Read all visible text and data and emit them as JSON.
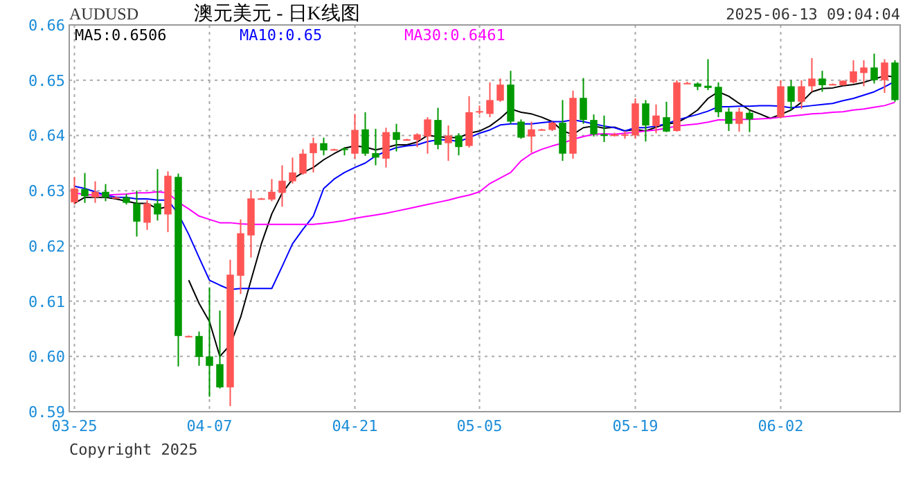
{
  "chart_data": {
    "type": "candlestick",
    "title": "澳元美元 - 日K线图",
    "annotations": [
      "AUDUSD",
      "2025-06-13 09:04:04",
      "Copyright 2025"
    ],
    "categories": [
      "03-25",
      null,
      null,
      null,
      null,
      null,
      null,
      null,
      null,
      null,
      null,
      null,
      null,
      "04-07",
      null,
      null,
      null,
      null,
      null,
      null,
      null,
      null,
      null,
      null,
      null,
      null,
      null,
      "04-21",
      null,
      null,
      null,
      null,
      null,
      null,
      null,
      null,
      null,
      null,
      null,
      "05-05",
      null,
      null,
      null,
      null,
      null,
      null,
      null,
      null,
      null,
      null,
      null,
      null,
      null,
      null,
      "05-19",
      null,
      null,
      null,
      null,
      null,
      null,
      null,
      null,
      null,
      null,
      null,
      null,
      null,
      "06-02",
      null,
      null,
      null,
      null,
      null,
      null,
      null,
      null,
      null,
      null,
      null
    ],
    "ohlc": [
      [
        0.6279,
        0.6325,
        0.6275,
        0.6304
      ],
      [
        0.6303,
        0.6332,
        0.6278,
        0.629
      ],
      [
        0.6288,
        0.6317,
        0.6278,
        0.6298
      ],
      [
        0.6298,
        0.6312,
        0.6281,
        0.6288
      ],
      [
        0.6288,
        0.629,
        0.6286,
        0.6288
      ],
      [
        0.6288,
        0.6294,
        0.6275,
        0.6278
      ],
      [
        0.6277,
        0.63,
        0.6217,
        0.6244
      ],
      [
        0.6242,
        0.6283,
        0.6229,
        0.6277
      ],
      [
        0.6277,
        0.6339,
        0.6246,
        0.6257
      ],
      [
        0.6257,
        0.6335,
        0.6225,
        0.6327
      ],
      [
        0.6325,
        0.6331,
        0.5982,
        0.6037
      ],
      [
        0.6037,
        0.6038,
        0.6036,
        0.6037
      ],
      [
        0.6037,
        0.6045,
        0.5983,
        0.5999
      ],
      [
        0.6,
        0.6125,
        0.5927,
        0.5983
      ],
      [
        0.5986,
        0.6083,
        0.5942,
        0.5944
      ],
      [
        0.5944,
        0.6175,
        0.591,
        0.6148
      ],
      [
        0.6146,
        0.6248,
        0.6113,
        0.6223
      ],
      [
        0.6219,
        0.63,
        0.6179,
        0.6286
      ],
      [
        0.6286,
        0.6287,
        0.6285,
        0.6286
      ],
      [
        0.6284,
        0.6321,
        0.6281,
        0.6298
      ],
      [
        0.6296,
        0.6346,
        0.6271,
        0.6318
      ],
      [
        0.6317,
        0.636,
        0.6313,
        0.6333
      ],
      [
        0.6331,
        0.6375,
        0.6329,
        0.6367
      ],
      [
        0.6368,
        0.6396,
        0.6333,
        0.6386
      ],
      [
        0.6386,
        0.6396,
        0.6364,
        0.6373
      ],
      [
        0.6375,
        0.6376,
        0.6374,
        0.6375
      ],
      [
        0.6376,
        0.6379,
        0.6364,
        0.6374
      ],
      [
        0.6367,
        0.6439,
        0.6358,
        0.641
      ],
      [
        0.6411,
        0.6442,
        0.6363,
        0.6367
      ],
      [
        0.6368,
        0.6412,
        0.6346,
        0.636
      ],
      [
        0.6358,
        0.6414,
        0.6342,
        0.6406
      ],
      [
        0.6406,
        0.6421,
        0.6371,
        0.6392
      ],
      [
        0.6393,
        0.6394,
        0.6392,
        0.6393
      ],
      [
        0.6392,
        0.6404,
        0.6379,
        0.6402
      ],
      [
        0.6398,
        0.6433,
        0.6367,
        0.6429
      ],
      [
        0.6428,
        0.645,
        0.6375,
        0.6383
      ],
      [
        0.6386,
        0.6418,
        0.6354,
        0.64
      ],
      [
        0.64,
        0.6404,
        0.6364,
        0.6379
      ],
      [
        0.6381,
        0.6471,
        0.6378,
        0.6442
      ],
      [
        0.6443,
        0.6454,
        0.6438,
        0.6444
      ],
      [
        0.6439,
        0.6496,
        0.6433,
        0.6464
      ],
      [
        0.6463,
        0.6503,
        0.6461,
        0.6492
      ],
      [
        0.6492,
        0.6517,
        0.6421,
        0.6425
      ],
      [
        0.6425,
        0.6429,
        0.6394,
        0.6396
      ],
      [
        0.6398,
        0.6425,
        0.6369,
        0.6411
      ],
      [
        0.6411,
        0.6412,
        0.641,
        0.6411
      ],
      [
        0.641,
        0.6425,
        0.6408,
        0.6423
      ],
      [
        0.6423,
        0.6464,
        0.6354,
        0.6367
      ],
      [
        0.6367,
        0.6481,
        0.6358,
        0.6468
      ],
      [
        0.6468,
        0.6504,
        0.6421,
        0.6428
      ],
      [
        0.6428,
        0.6438,
        0.6398,
        0.6402
      ],
      [
        0.6402,
        0.6436,
        0.6388,
        0.6399
      ],
      [
        0.6399,
        0.6405,
        0.6398,
        0.6402
      ],
      [
        0.6401,
        0.6408,
        0.6394,
        0.6402
      ],
      [
        0.64,
        0.6467,
        0.6394,
        0.6458
      ],
      [
        0.6458,
        0.6464,
        0.6389,
        0.6418
      ],
      [
        0.6417,
        0.6456,
        0.6404,
        0.6436
      ],
      [
        0.6433,
        0.6461,
        0.6406,
        0.6407
      ],
      [
        0.6408,
        0.65,
        0.6407,
        0.6496
      ],
      [
        0.6495,
        0.6497,
        0.6494,
        0.6495
      ],
      [
        0.6494,
        0.6496,
        0.6482,
        0.6488
      ],
      [
        0.649,
        0.6538,
        0.6482,
        0.6486
      ],
      [
        0.6488,
        0.6496,
        0.6433,
        0.6442
      ],
      [
        0.6443,
        0.645,
        0.6408,
        0.6421
      ],
      [
        0.6421,
        0.645,
        0.6407,
        0.6443
      ],
      [
        0.6441,
        0.6446,
        0.6406,
        0.6429
      ],
      null,
      null,
      [
        0.6433,
        0.65,
        0.6431,
        0.6489
      ],
      [
        0.6489,
        0.65,
        0.6446,
        0.6461
      ],
      [
        0.6461,
        0.65,
        0.6448,
        0.6489
      ],
      [
        0.6489,
        0.654,
        0.6479,
        0.6503
      ],
      [
        0.6503,
        0.6517,
        0.6479,
        0.6491
      ],
      [
        0.6493,
        0.6494,
        0.6492,
        0.6493
      ],
      [
        0.6491,
        0.65,
        0.649,
        0.6499
      ],
      [
        0.6496,
        0.6536,
        0.6494,
        0.6516
      ],
      [
        0.6513,
        0.6536,
        0.6489,
        0.6523
      ],
      [
        0.6523,
        0.6548,
        0.6494,
        0.65
      ],
      [
        0.65,
        0.6538,
        0.6477,
        0.6532
      ],
      [
        0.6532,
        0.6536,
        0.6461,
        0.6464
      ]
    ],
    "series": [
      {
        "name": "MA5:0.6506",
        "type": "line",
        "color": "#000000",
        "values": [
          0.6277,
          0.6288,
          0.6288,
          0.6288,
          0.6285,
          0.6281,
          0.6277,
          0.6277,
          0.6267,
          0.6271,
          null,
          0.6138,
          0.6096,
          0.6063,
          0.6,
          0.6021,
          0.6071,
          0.6138,
          0.6204,
          0.6258,
          0.6296,
          0.6321,
          0.6333,
          0.6342,
          0.6356,
          0.6367,
          0.6377,
          0.6381,
          0.6379,
          0.6374,
          0.6378,
          0.6383,
          0.6383,
          0.6388,
          0.64,
          0.6398,
          0.6396,
          0.6396,
          0.6404,
          0.6408,
          0.6417,
          0.6431,
          0.6448,
          0.6442,
          0.6439,
          0.6433,
          0.6425,
          0.6408,
          0.6402,
          0.6414,
          0.6417,
          0.6413,
          0.6415,
          0.6408,
          0.6411,
          0.6408,
          0.6415,
          0.6421,
          0.6423,
          0.6433,
          0.6446,
          0.6467,
          0.6479,
          0.6471,
          0.6458,
          0.6446,
          0.6439,
          0.6431,
          0.6438,
          0.6446,
          0.646,
          0.6479,
          0.6485,
          0.6486,
          0.649,
          0.6492,
          0.6496,
          0.6502,
          0.6508,
          0.6506
        ]
      },
      {
        "name": "MA10:0.65",
        "type": "line",
        "color": "#0000ff",
        "values": [
          0.6308,
          0.6304,
          0.6298,
          0.6292,
          0.6288,
          0.6288,
          0.6285,
          0.6285,
          0.6283,
          0.6283,
          0.6258,
          0.6221,
          0.6179,
          0.6138,
          0.6129,
          0.6121,
          0.6123,
          0.6123,
          0.6123,
          0.6123,
          0.6163,
          0.6204,
          0.623,
          0.6254,
          0.6304,
          0.6321,
          0.6333,
          0.6342,
          0.635,
          0.6363,
          0.6371,
          0.6378,
          0.6381,
          0.6383,
          0.6389,
          0.6392,
          0.6392,
          0.6389,
          0.6396,
          0.6404,
          0.641,
          0.6419,
          0.6421,
          0.6421,
          0.6421,
          0.6423,
          0.6425,
          0.6425,
          0.6428,
          0.6425,
          0.6421,
          0.6417,
          0.6414,
          0.6408,
          0.6414,
          0.6414,
          0.6417,
          0.6421,
          0.6428,
          0.6433,
          0.6438,
          0.6444,
          0.6452,
          0.6452,
          0.6453,
          0.6453,
          0.6454,
          0.6454,
          0.6453,
          0.645,
          0.6452,
          0.6454,
          0.6456,
          0.6458,
          0.6463,
          0.6467,
          0.6473,
          0.6479,
          0.6488,
          0.6498
        ]
      },
      {
        "name": "MA30:0.6461",
        "type": "line",
        "color": "#ff00ff",
        "values": [
          0.6296,
          0.6293,
          0.6292,
          0.6292,
          0.6293,
          0.6294,
          0.6296,
          0.6296,
          0.6298,
          0.6296,
          0.6279,
          0.6267,
          0.6254,
          0.6248,
          0.6242,
          0.6242,
          0.624,
          0.6239,
          0.6239,
          0.6239,
          0.6239,
          0.6239,
          0.6239,
          0.6239,
          0.6241,
          0.6243,
          0.6246,
          0.625,
          0.6253,
          0.6256,
          0.6259,
          0.6263,
          0.6267,
          0.6271,
          0.6275,
          0.6279,
          0.6283,
          0.6288,
          0.6292,
          0.6298,
          0.6313,
          0.6323,
          0.6333,
          0.6354,
          0.6367,
          0.6375,
          0.6381,
          0.6386,
          0.6393,
          0.6398,
          0.6402,
          0.6403,
          0.6402,
          0.6404,
          0.6406,
          0.6408,
          0.641,
          0.6413,
          0.6417,
          0.6419,
          0.6421,
          0.6424,
          0.6428,
          0.6428,
          0.6429,
          0.6429,
          0.643,
          0.6431,
          0.6433,
          0.6435,
          0.6437,
          0.6439,
          0.644,
          0.6442,
          0.6443,
          0.6446,
          0.6448,
          0.6451,
          0.6454,
          0.646
        ]
      }
    ],
    "ylim": [
      0.59,
      0.66
    ],
    "yticks": [
      {
        "value": 0.59,
        "label": "0.59"
      },
      {
        "value": 0.6,
        "label": "0.60"
      },
      {
        "value": 0.61,
        "label": "0.61"
      },
      {
        "value": 0.62,
        "label": "0.62"
      },
      {
        "value": 0.63,
        "label": "0.63"
      },
      {
        "value": 0.64,
        "label": "0.64"
      },
      {
        "value": 0.65,
        "label": "0.65"
      },
      {
        "value": 0.66,
        "label": "0.66"
      }
    ],
    "grid": true,
    "legend": "top left"
  }
}
